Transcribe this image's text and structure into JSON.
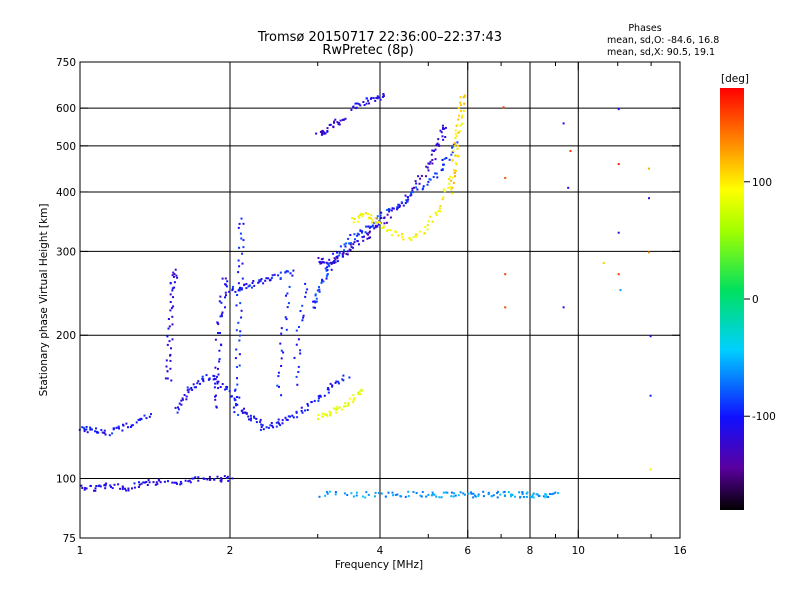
{
  "chart_data": {
    "type": "scatter",
    "title_line1": "Tromsø 20150717 22:36:00–22:37:43",
    "title_line2": "RwPretec (8p)",
    "stats": {
      "heading": "Phases",
      "line_o": "mean, sd,O: -84.6, 16.8",
      "line_x": "mean, sd,X:  90.5, 19.1"
    },
    "xlabel": "Frequency [MHz]",
    "ylabel": "Stationary phase Virtual Height [km]",
    "x_scale": "log",
    "y_scale": "log",
    "xlim": [
      1,
      16
    ],
    "ylim": [
      75,
      750
    ],
    "x_ticks": [
      {
        "value": 1,
        "label": "1"
      },
      {
        "value": 2,
        "label": "2"
      },
      {
        "value": 4,
        "label": "4"
      },
      {
        "value": 6,
        "label": "6"
      },
      {
        "value": 8,
        "label": "8"
      },
      {
        "value": 10,
        "label": "10"
      },
      {
        "value": 16,
        "label": "16"
      }
    ],
    "x_minor_ticks": [
      3,
      5,
      7,
      9,
      12,
      14
    ],
    "x_grid": [
      2,
      4,
      6,
      8,
      10
    ],
    "y_ticks": [
      {
        "value": 75,
        "label": "75"
      },
      {
        "value": 100,
        "label": "100"
      },
      {
        "value": 200,
        "label": "200"
      },
      {
        "value": 300,
        "label": "300"
      },
      {
        "value": 400,
        "label": "400"
      },
      {
        "value": 500,
        "label": "500"
      },
      {
        "value": 600,
        "label": "600"
      },
      {
        "value": 750,
        "label": "750"
      }
    ],
    "y_grid": [
      100,
      200,
      300,
      400,
      500,
      600
    ],
    "colorbar": {
      "label": "[deg]",
      "range": [
        -180,
        180
      ],
      "ticks": [
        {
          "value": 100,
          "label": "100"
        },
        {
          "value": 0,
          "label": "0"
        },
        {
          "value": -100,
          "label": "-100"
        }
      ]
    },
    "colors": {
      "grid": "#000000",
      "frame": "#000000"
    },
    "traces": [
      {
        "x": [
          1.0,
          1.08,
          1.15,
          1.25,
          1.35,
          1.45,
          1.6,
          1.75,
          1.9,
          2.0
        ],
        "y": [
          96,
          96,
          97,
          96,
          98,
          99,
          99,
          100,
          100,
          101
        ],
        "phase": -110
      },
      {
        "x": [
          1.0,
          1.05,
          1.12,
          1.2,
          1.3,
          1.38
        ],
        "y": [
          128,
          127,
          125,
          128,
          132,
          136
        ],
        "phase": -100
      },
      {
        "x": [
          1.55,
          1.62,
          1.7,
          1.8,
          1.9,
          2.0,
          2.1,
          2.2,
          2.3
        ],
        "y": [
          140,
          150,
          158,
          165,
          160,
          150,
          140,
          135,
          132
        ],
        "phase": -105
      },
      {
        "x": [
          1.5,
          1.5,
          1.52,
          1.53,
          1.55
        ],
        "y": [
          160,
          185,
          220,
          260,
          275
        ],
        "phase": -115
      },
      {
        "x": [
          1.85,
          1.87,
          1.9,
          1.93,
          1.95
        ],
        "y": [
          140,
          170,
          210,
          240,
          270
        ],
        "phase": -110
      },
      {
        "x": [
          2.05,
          2.06,
          2.08,
          2.09,
          2.1
        ],
        "y": [
          135,
          180,
          230,
          300,
          360
        ],
        "phase": -95
      },
      {
        "x": [
          2.0,
          2.1,
          2.2,
          2.35,
          2.5,
          2.7
        ],
        "y": [
          250,
          253,
          257,
          262,
          268,
          272
        ],
        "phase": -100
      },
      {
        "x": [
          2.3,
          2.45,
          2.6,
          2.8,
          3.0,
          3.2,
          3.45
        ],
        "y": [
          128,
          130,
          134,
          140,
          148,
          158,
          165
        ],
        "phase": -100
      },
      {
        "x": [
          2.5,
          2.55,
          2.6
        ],
        "y": [
          150,
          200,
          260
        ],
        "phase": -98
      },
      {
        "x": [
          2.7,
          2.75,
          2.85
        ],
        "y": [
          160,
          210,
          260
        ],
        "phase": -95
      },
      {
        "x": [
          3.0,
          3.1,
          3.25,
          3.4,
          3.6,
          3.8,
          4.0,
          4.3,
          4.6,
          4.9,
          5.1,
          5.3,
          5.4
        ],
        "y": [
          290,
          285,
          290,
          300,
          315,
          330,
          345,
          370,
          400,
          440,
          480,
          520,
          560
        ],
        "phase": -120
      },
      {
        "x": [
          2.9,
          3.0,
          3.1,
          3.2,
          3.4,
          3.6,
          3.8,
          4.0,
          4.4,
          4.8,
          5.2,
          5.5,
          5.7
        ],
        "y": [
          230,
          250,
          270,
          290,
          310,
          330,
          340,
          360,
          380,
          410,
          440,
          480,
          520
        ],
        "phase": -90
      },
      {
        "x": [
          3.5,
          3.7,
          3.9,
          4.2,
          4.6,
          5.0,
          5.3,
          5.6,
          5.8
        ],
        "y": [
          350,
          360,
          350,
          330,
          320,
          340,
          380,
          450,
          600
        ],
        "phase": 95
      },
      {
        "x": [
          5.5,
          5.6,
          5.7,
          5.8,
          5.85
        ],
        "y": [
          400,
          450,
          520,
          600,
          650
        ],
        "phase": 110
      },
      {
        "x": [
          3.0,
          3.15,
          3.3,
          3.5,
          3.7
        ],
        "y": [
          135,
          138,
          142,
          148,
          155
        ],
        "phase": 85
      },
      {
        "x": [
          3.0,
          3.1,
          3.25,
          3.4
        ],
        "y": [
          530,
          540,
          560,
          570
        ],
        "phase": -120
      },
      {
        "x": [
          3.5,
          3.7,
          3.9,
          4.1
        ],
        "y": [
          600,
          620,
          630,
          640
        ],
        "phase": -110
      },
      {
        "x": [
          3.0,
          3.5,
          4.0,
          4.5,
          5.0,
          5.5,
          6.0,
          6.5,
          7.0,
          7.5,
          8.0,
          8.5,
          9.0
        ],
        "y": [
          93,
          93,
          93,
          93,
          93,
          93,
          93,
          93,
          93,
          93,
          93,
          93,
          93
        ],
        "phase": -60
      }
    ],
    "scatter_points": [
      {
        "x": 7.1,
        "y": 430,
        "phase": 150
      },
      {
        "x": 7.1,
        "y": 270,
        "phase": 160
      },
      {
        "x": 7.1,
        "y": 230,
        "phase": 155
      },
      {
        "x": 7.05,
        "y": 605,
        "phase": 165
      },
      {
        "x": 9.3,
        "y": 560,
        "phase": -110
      },
      {
        "x": 9.3,
        "y": 230,
        "phase": -120
      },
      {
        "x": 9.6,
        "y": 490,
        "phase": 160
      },
      {
        "x": 9.5,
        "y": 410,
        "phase": -110
      },
      {
        "x": 12.0,
        "y": 600,
        "phase": -100
      },
      {
        "x": 12.0,
        "y": 460,
        "phase": 170
      },
      {
        "x": 12.0,
        "y": 330,
        "phase": -115
      },
      {
        "x": 12.0,
        "y": 270,
        "phase": 160
      },
      {
        "x": 12.1,
        "y": 250,
        "phase": -60
      },
      {
        "x": 13.8,
        "y": 450,
        "phase": 120
      },
      {
        "x": 13.8,
        "y": 390,
        "phase": -120
      },
      {
        "x": 13.8,
        "y": 300,
        "phase": 130
      },
      {
        "x": 13.9,
        "y": 200,
        "phase": -110
      },
      {
        "x": 13.9,
        "y": 150,
        "phase": -95
      },
      {
        "x": 13.9,
        "y": 105,
        "phase": 100
      },
      {
        "x": 11.2,
        "y": 285,
        "phase": 110
      }
    ]
  }
}
